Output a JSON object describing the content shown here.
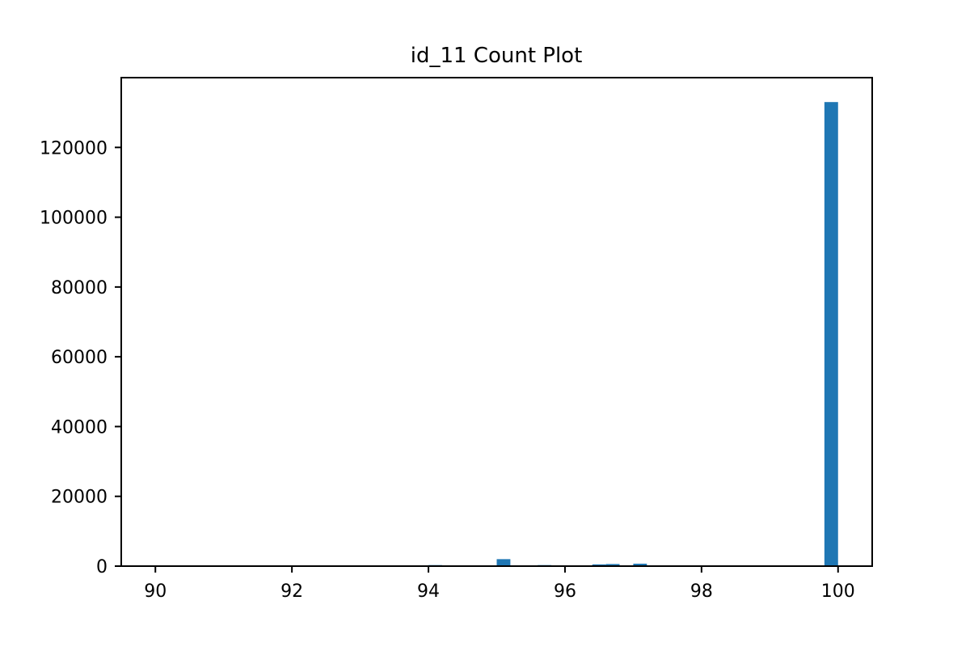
{
  "chart_data": {
    "type": "bar",
    "title": "id_11 Count Plot",
    "xlabel": "",
    "ylabel": "",
    "xlim": [
      89.5,
      100.5
    ],
    "ylim": [
      0,
      140000
    ],
    "bin_width": 0.2,
    "bar_color": "#1f77b4",
    "grid": false,
    "x_ticks": [
      "90",
      "92",
      "94",
      "96",
      "98",
      "100"
    ],
    "y_ticks": [
      "0",
      "20000",
      "40000",
      "60000",
      "80000",
      "100000",
      "120000"
    ],
    "bars": [
      {
        "x": 94.1,
        "value": 300
      },
      {
        "x": 95.1,
        "value": 2000
      },
      {
        "x": 95.7,
        "value": 300
      },
      {
        "x": 96.5,
        "value": 500
      },
      {
        "x": 96.7,
        "value": 600
      },
      {
        "x": 97.1,
        "value": 700
      },
      {
        "x": 99.9,
        "value": 133000
      }
    ]
  }
}
